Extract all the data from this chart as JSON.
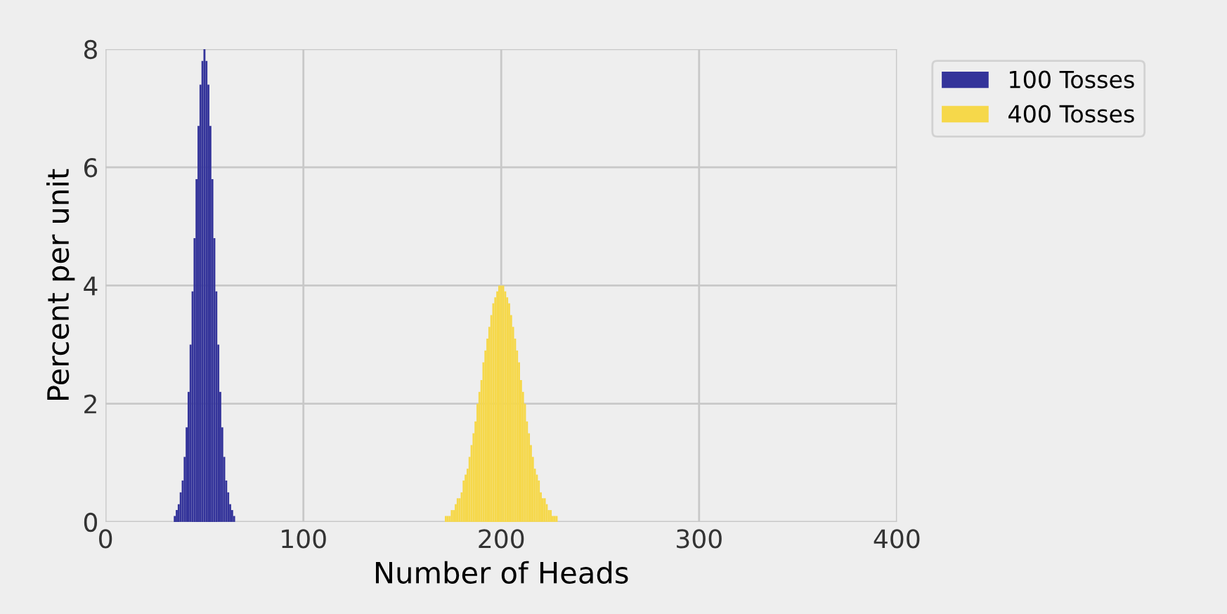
{
  "chart_data": {
    "type": "bar",
    "xlabel": "Number of Heads",
    "ylabel": "Percent per unit",
    "xlim": [
      0,
      400
    ],
    "xticks": [
      0,
      100,
      200,
      300,
      400
    ],
    "ylim": [
      0,
      8
    ],
    "yticks": [
      0,
      2,
      4,
      6,
      8
    ],
    "grid": true,
    "legend": "top right",
    "series": [
      {
        "name": "100 Tosses",
        "color": "#34349a",
        "x": [
          35,
          36,
          37,
          38,
          39,
          40,
          41,
          42,
          43,
          44,
          45,
          46,
          47,
          48,
          49,
          50,
          51,
          52,
          53,
          54,
          55,
          56,
          57,
          58,
          59,
          60,
          61,
          62,
          63,
          64,
          65
        ],
        "values": [
          0.1,
          0.2,
          0.3,
          0.5,
          0.7,
          1.1,
          1.6,
          2.2,
          3.0,
          3.9,
          4.8,
          5.8,
          6.7,
          7.4,
          7.8,
          8.0,
          7.8,
          7.4,
          6.7,
          5.8,
          4.8,
          3.9,
          3.0,
          2.2,
          1.6,
          1.1,
          0.7,
          0.5,
          0.3,
          0.2,
          0.1
        ]
      },
      {
        "name": "400 Tosses",
        "color": "#f6d84a",
        "x": [
          172,
          173,
          174,
          175,
          176,
          177,
          178,
          179,
          180,
          181,
          182,
          183,
          184,
          185,
          186,
          187,
          188,
          189,
          190,
          191,
          192,
          193,
          194,
          195,
          196,
          197,
          198,
          199,
          200,
          201,
          202,
          203,
          204,
          205,
          206,
          207,
          208,
          209,
          210,
          211,
          212,
          213,
          214,
          215,
          216,
          217,
          218,
          219,
          220,
          221,
          222,
          223,
          224,
          225,
          226,
          227,
          228
        ],
        "values": [
          0.1,
          0.1,
          0.1,
          0.2,
          0.2,
          0.3,
          0.4,
          0.4,
          0.5,
          0.7,
          0.8,
          0.9,
          1.1,
          1.3,
          1.5,
          1.7,
          2.0,
          2.2,
          2.4,
          2.7,
          2.9,
          3.1,
          3.3,
          3.5,
          3.7,
          3.8,
          3.9,
          4.0,
          4.0,
          4.0,
          3.9,
          3.8,
          3.7,
          3.5,
          3.3,
          3.1,
          2.9,
          2.7,
          2.4,
          2.2,
          2.0,
          1.7,
          1.5,
          1.3,
          1.1,
          0.9,
          0.8,
          0.7,
          0.5,
          0.4,
          0.4,
          0.3,
          0.2,
          0.2,
          0.1,
          0.1,
          0.1
        ]
      }
    ]
  }
}
